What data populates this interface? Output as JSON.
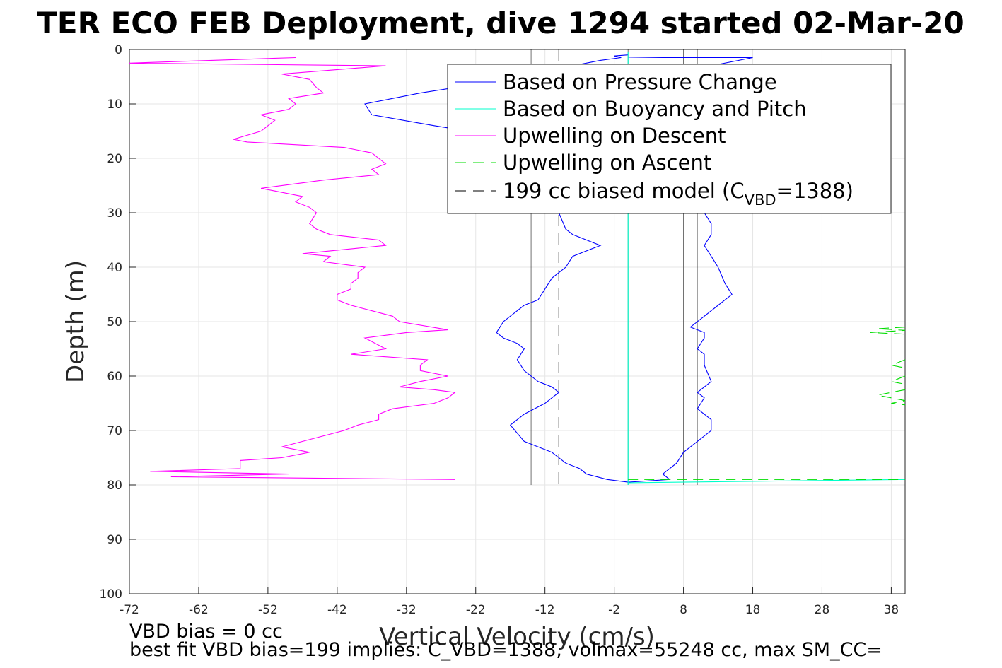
{
  "chart_data": {
    "type": "line",
    "title": "TER ECO FEB Deployment, dive 1294 started 02-Mar-20",
    "xlabel": "Vertical Velocity (cm/s)",
    "ylabel": "Depth (m)",
    "xlim": [
      -72,
      40
    ],
    "ylim": [
      0,
      100
    ],
    "y_reversed": true,
    "x_ticks": [
      -72,
      -62,
      -52,
      -42,
      -32,
      -22,
      -12,
      -2,
      8,
      18,
      28,
      38
    ],
    "y_ticks": [
      0,
      10,
      20,
      30,
      40,
      50,
      60,
      70,
      80,
      90,
      100
    ],
    "grid": true,
    "legend_position": "top-right",
    "legend": [
      {
        "label": "Based on Pressure Change",
        "color": "#0000ff",
        "dash": "solid"
      },
      {
        "label": "Based on Buoyancy and Pitch",
        "color": "#00ffcc",
        "dash": "solid"
      },
      {
        "label": "Upwelling on Descent",
        "color": "#ff00ff",
        "dash": "solid"
      },
      {
        "label": "Upwelling on Ascent",
        "color": "#00dd00",
        "dash": "dashed"
      },
      {
        "label_prefix": "199 cc biased model (C",
        "label_sub": "VBD",
        "label_suffix": "=1388)",
        "color": "#000000",
        "dash": "dashed"
      }
    ],
    "reference_lines": [
      {
        "x": -14,
        "y_range": [
          0,
          80
        ],
        "style": "solid-thin",
        "color": "#000000"
      },
      {
        "x": 10,
        "y_range": [
          0,
          80
        ],
        "style": "solid-thin",
        "color": "#000000"
      },
      {
        "x": -10,
        "y_range": [
          0,
          80
        ],
        "style": "dashed",
        "color": "#000000"
      },
      {
        "x": 8,
        "y_range": [
          0,
          80
        ],
        "style": "solid-thin",
        "color": "#000000"
      },
      {
        "x": 0,
        "y_range": [
          0,
          80
        ],
        "style": "solid-thin",
        "color": "#000000"
      }
    ],
    "series": [
      {
        "name": "Based on Pressure Change",
        "color": "#0000ff",
        "segments": [
          [
            [
              0,
              1
            ],
            [
              -2,
              1.2
            ],
            [
              -1,
              1.5
            ],
            [
              -4,
              2
            ],
            [
              -8,
              3
            ],
            [
              -16,
              5
            ],
            [
              -25,
              7
            ],
            [
              -30,
              8
            ],
            [
              -38,
              10
            ],
            [
              -37,
              12
            ],
            [
              -28,
              14
            ],
            [
              -23,
              15
            ],
            [
              -20,
              16
            ]
          ],
          [
            [
              0,
              1.4
            ],
            [
              5,
              1.5
            ],
            [
              18,
              1.5
            ],
            [
              12,
              3
            ],
            [
              8,
              5
            ]
          ],
          [
            [
              -10,
              30
            ],
            [
              -9,
              33
            ],
            [
              -8,
              34
            ],
            [
              -6,
              35
            ],
            [
              -4,
              36
            ],
            [
              -6,
              37
            ],
            [
              -8,
              38
            ],
            [
              -9,
              40
            ],
            [
              -10,
              41
            ],
            [
              -11,
              42
            ],
            [
              -12,
              44
            ],
            [
              -13,
              46
            ],
            [
              -15,
              47
            ],
            [
              -16,
              48
            ],
            [
              -18,
              50
            ],
            [
              -19,
              52
            ],
            [
              -18,
              53
            ],
            [
              -16,
              54
            ],
            [
              -15,
              55
            ],
            [
              -16,
              57
            ],
            [
              -15,
              59
            ],
            [
              -13,
              61
            ],
            [
              -11,
              62
            ],
            [
              -10,
              63
            ],
            [
              -12,
              65
            ],
            [
              -15,
              67
            ],
            [
              -17,
              69
            ],
            [
              -15,
              72
            ],
            [
              -11,
              74
            ],
            [
              -9,
              76
            ],
            [
              -7,
              77
            ],
            [
              -6,
              78
            ],
            [
              -3,
              79
            ],
            [
              0,
              79.5
            ]
          ],
          [
            [
              11,
              30
            ],
            [
              12,
              32
            ],
            [
              12,
              34
            ],
            [
              11,
              36
            ],
            [
              12,
              38
            ],
            [
              13,
              40
            ],
            [
              14,
              43
            ],
            [
              15,
              45
            ],
            [
              14,
              46
            ],
            [
              12,
              48
            ],
            [
              11,
              49
            ],
            [
              10,
              50
            ],
            [
              9,
              51
            ],
            [
              11,
              52
            ],
            [
              11,
              53
            ],
            [
              10,
              55
            ],
            [
              11,
              56
            ],
            [
              11,
              58
            ],
            [
              12,
              61
            ],
            [
              11,
              62
            ],
            [
              10,
              63
            ],
            [
              11,
              64
            ],
            [
              10,
              66
            ],
            [
              12,
              68
            ],
            [
              12,
              70
            ],
            [
              10,
              72
            ],
            [
              8,
              74
            ],
            [
              7,
              76
            ],
            [
              6,
              77
            ],
            [
              5,
              78
            ],
            [
              6,
              79
            ],
            [
              0,
              79.5
            ]
          ]
        ]
      },
      {
        "name": "Based on Buoyancy and Pitch",
        "color": "#00ffcc",
        "segments": [
          [
            [
              0,
              79.6
            ],
            [
              40,
              79
            ]
          ],
          [
            [
              0,
              0.5
            ],
            [
              0,
              80
            ]
          ]
        ]
      },
      {
        "name": "Upwelling on Descent",
        "color": "#ff00ff",
        "segments": [
          [
            [
              -48,
              1.5
            ],
            [
              -72,
              2.5
            ],
            [
              -35,
              3
            ],
            [
              -50,
              4.5
            ],
            [
              -46,
              5.5
            ],
            [
              -45,
              7
            ],
            [
              -44,
              8
            ],
            [
              -49,
              9
            ],
            [
              -48,
              10
            ],
            [
              -49,
              11
            ],
            [
              -53,
              12
            ],
            [
              -51,
              13
            ],
            [
              -52,
              14
            ],
            [
              -53,
              15
            ],
            [
              -57,
              16.5
            ],
            [
              -55,
              17
            ],
            [
              -41,
              18
            ],
            [
              -37,
              19
            ],
            [
              -36,
              20
            ],
            [
              -35,
              21
            ],
            [
              -37,
              22
            ],
            [
              -36,
              23
            ],
            [
              -44,
              24
            ],
            [
              -53,
              25.5
            ],
            [
              -51,
              26
            ],
            [
              -47,
              27
            ],
            [
              -48,
              28
            ],
            [
              -46,
              29
            ],
            [
              -45,
              30
            ],
            [
              -46,
              32
            ],
            [
              -45,
              33
            ],
            [
              -43,
              34
            ],
            [
              -36,
              35
            ],
            [
              -35,
              36
            ],
            [
              -43,
              37
            ],
            [
              -47,
              37.5
            ],
            [
              -43,
              38
            ],
            [
              -44,
              39
            ],
            [
              -38,
              40
            ],
            [
              -39,
              41
            ],
            [
              -39,
              42
            ],
            [
              -40,
              43
            ],
            [
              -40,
              44
            ],
            [
              -42,
              45
            ],
            [
              -42,
              46
            ],
            [
              -40,
              47
            ],
            [
              -34,
              49
            ],
            [
              -33,
              50
            ],
            [
              -26,
              51.5
            ],
            [
              -32,
              52
            ],
            [
              -38,
              53
            ],
            [
              -35,
              55
            ],
            [
              -40,
              56
            ],
            [
              -29,
              57
            ],
            [
              -30,
              58
            ],
            [
              -30,
              59
            ],
            [
              -26,
              60
            ],
            [
              -30,
              61
            ],
            [
              -33,
              62
            ],
            [
              -28,
              62.5
            ],
            [
              -25,
              63
            ],
            [
              -26,
              64
            ],
            [
              -28,
              65
            ],
            [
              -34,
              66
            ],
            [
              -36,
              67
            ],
            [
              -36,
              68
            ],
            [
              -39,
              69
            ],
            [
              -41,
              70
            ],
            [
              -47,
              72
            ],
            [
              -50,
              73
            ],
            [
              -46,
              74
            ],
            [
              -50,
              75
            ],
            [
              -56,
              75.5
            ],
            [
              -56,
              76
            ],
            [
              -56,
              77
            ],
            [
              -69,
              77.5
            ],
            [
              -49,
              78
            ],
            [
              -66,
              78.5
            ],
            [
              -25,
              79
            ]
          ]
        ]
      },
      {
        "name": "Upwelling on Ascent",
        "color": "#00dd00",
        "dashed": true,
        "segments": [
          [
            [
              0,
              79
            ],
            [
              40,
              79
            ]
          ],
          [
            [
              40,
              51
            ],
            [
              36,
              51.3
            ],
            [
              40,
              51.6
            ],
            [
              35,
              52
            ],
            [
              40,
              52.3
            ]
          ],
          [
            [
              40,
              57
            ],
            [
              39,
              57.5
            ],
            [
              38,
              58
            ],
            [
              40,
              58.5
            ]
          ],
          [
            [
              40,
              60
            ],
            [
              39,
              60.5
            ],
            [
              38,
              61
            ],
            [
              40,
              61.5
            ]
          ],
          [
            [
              40,
              62.5
            ],
            [
              38,
              63
            ],
            [
              36,
              63.5
            ],
            [
              38,
              64
            ],
            [
              40,
              64.5
            ],
            [
              38,
              65
            ],
            [
              40,
              65.3
            ]
          ]
        ]
      }
    ]
  },
  "footer": {
    "vbd_bias": "VBD bias = 0 cc",
    "best_fit": "best fit VBD bias=199 implies: C_VBD=1388, volmax=55248 cc, max SM_CC="
  }
}
